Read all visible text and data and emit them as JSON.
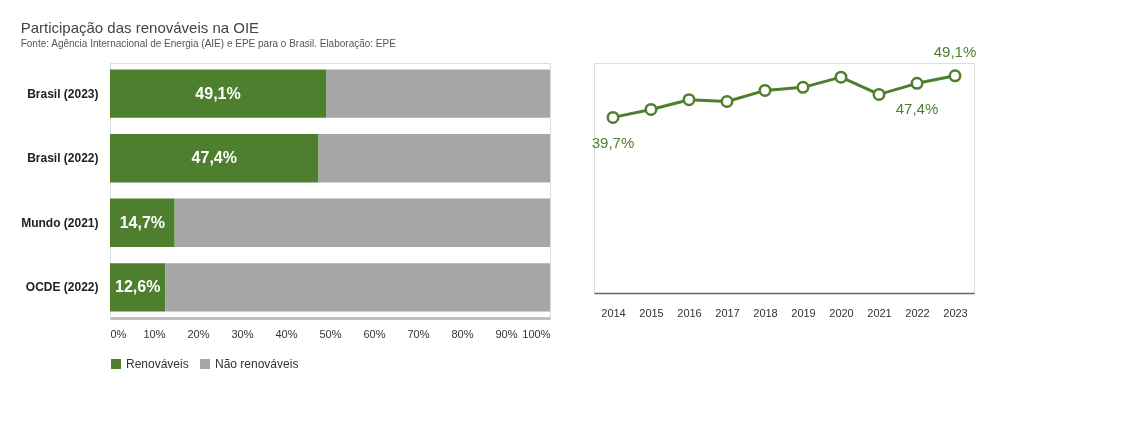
{
  "chart_data": [
    {
      "type": "bar",
      "orientation": "horizontal",
      "stacked": true,
      "title": "Participação das renováveis na OIE",
      "subtitle": "Fonte: Agência Internacional de Energia (AIE) e EPE para o Brasil. Elaboração: EPE",
      "categories": [
        "Brasil (2023)",
        "Brasil (2022)",
        "Mundo (2021)",
        "OCDE (2022)"
      ],
      "series": [
        {
          "name": "Renováveis",
          "color": "#4e7f2e",
          "values": [
            49.1,
            47.4,
            14.7,
            12.6
          ],
          "value_labels": [
            "49,1%",
            "47,4%",
            "14,7%",
            "12,6%"
          ]
        },
        {
          "name": "Não renováveis",
          "color": "#a6a6a6",
          "values": [
            50.9,
            52.6,
            85.3,
            87.4
          ]
        }
      ],
      "xlim": [
        0,
        100
      ],
      "xticks": [
        {
          "value": 0,
          "label": "0%"
        },
        {
          "value": 10,
          "label": "10%"
        },
        {
          "value": 20,
          "label": "20%"
        },
        {
          "value": 30,
          "label": "30%"
        },
        {
          "value": 40,
          "label": "40%"
        },
        {
          "value": 50,
          "label": "50%"
        },
        {
          "value": 60,
          "label": "60%"
        },
        {
          "value": 70,
          "label": "70%"
        },
        {
          "value": 80,
          "label": "80%"
        },
        {
          "value": 90,
          "label": "90%"
        },
        {
          "value": 100,
          "label": "100%"
        }
      ],
      "legend": "bottom",
      "grid": false
    },
    {
      "type": "line",
      "categories": [
        "2014",
        "2015",
        "2016",
        "2017",
        "2018",
        "2019",
        "2020",
        "2021",
        "2022",
        "2023"
      ],
      "series": [
        {
          "color": "#4e7f2e",
          "values": [
            39.7,
            41.5,
            43.7,
            43.3,
            45.8,
            46.5,
            48.8,
            44.9,
            47.4,
            49.1
          ],
          "value_labels": [
            "39,7%",
            null,
            null,
            null,
            null,
            null,
            null,
            null,
            "47,4%",
            "49,1%"
          ]
        }
      ],
      "ylim": [
        0,
        52
      ],
      "tick_labels": "x",
      "marker": "circle",
      "line_style": "solid",
      "grid": false
    }
  ]
}
